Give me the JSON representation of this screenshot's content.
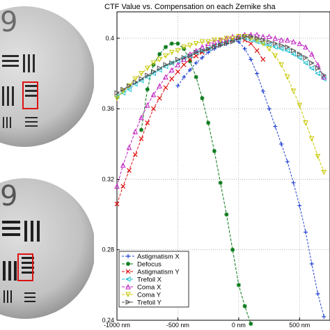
{
  "chart_data": {
    "type": "line",
    "title": "CTF Value vs. Compensation on each Zernike sha",
    "xlabel": "",
    "ylabel": "",
    "xlim": [
      -1000,
      750
    ],
    "ylim": [
      0.24,
      0.415
    ],
    "x_ticks": [
      {
        "value": -1000,
        "label": "-1000 nm"
      },
      {
        "value": -500,
        "label": "-500 nm"
      },
      {
        "value": 0,
        "label": "0 nm"
      },
      {
        "value": 500,
        "label": "500 nm"
      }
    ],
    "y_ticks": [
      {
        "value": 0.24,
        "label": "0.24"
      },
      {
        "value": 0.28,
        "label": "0.28"
      },
      {
        "value": 0.32,
        "label": "0.32"
      },
      {
        "value": 0.36,
        "label": "0.36"
      },
      {
        "value": 0.4,
        "label": "0.4"
      }
    ],
    "grid": true,
    "legend_position": "bottom-left",
    "series": [
      {
        "name": "Astigmatism X",
        "color": "#1f3fd0",
        "marker": "plus",
        "dash": "3,2",
        "x": [
          -500,
          -450,
          -400,
          -350,
          -300,
          -250,
          -200,
          -150,
          -100,
          -50,
          0,
          50,
          100,
          150,
          200,
          250,
          300,
          350,
          400,
          450,
          500,
          550,
          600,
          650,
          700
        ],
        "y": [
          0.373,
          0.378,
          0.382,
          0.386,
          0.389,
          0.392,
          0.394,
          0.396,
          0.397,
          0.399,
          0.398,
          0.394,
          0.388,
          0.38,
          0.37,
          0.36,
          0.35,
          0.34,
          0.33,
          0.318,
          0.305,
          0.29,
          0.272,
          0.255,
          0.242
        ]
      },
      {
        "name": "Defocus",
        "color": "#0a7a1a",
        "marker": "star",
        "dash": "4,2",
        "x": [
          -800,
          -750,
          -700,
          -650,
          -600,
          -550,
          -500,
          -450,
          -400,
          -350,
          -300,
          -250,
          -200,
          -150,
          -100,
          -50,
          0,
          50,
          100
        ],
        "y": [
          0.348,
          0.371,
          0.385,
          0.391,
          0.395,
          0.397,
          0.397,
          0.394,
          0.387,
          0.378,
          0.366,
          0.352,
          0.336,
          0.318,
          0.3,
          0.28,
          0.26,
          0.248,
          0.238
        ]
      },
      {
        "name": "Astigmatism Y",
        "color": "#e01010",
        "marker": "x",
        "dash": "4,2",
        "x": [
          -1000,
          -950,
          -900,
          -850,
          -800,
          -750,
          -700,
          -650,
          -600,
          -550,
          -500,
          -450,
          -400,
          -350,
          -300,
          -250,
          -200,
          -150,
          -100,
          -50,
          0,
          50,
          100,
          150,
          200
        ],
        "y": [
          0.306,
          0.316,
          0.325,
          0.334,
          0.343,
          0.352,
          0.36,
          0.366,
          0.372,
          0.377,
          0.381,
          0.385,
          0.388,
          0.39,
          0.392,
          0.394,
          0.396,
          0.397,
          0.398,
          0.399,
          0.4,
          0.399,
          0.397,
          0.393,
          0.388
        ]
      },
      {
        "name": "Trefoil X",
        "color": "#20c0d0",
        "marker": "triangle-left",
        "dash": "4,2",
        "x": [
          -1000,
          -950,
          -900,
          -850,
          -800,
          -750,
          -700,
          -650,
          -600,
          -550,
          -500,
          -450,
          -400,
          -350,
          -300,
          -250,
          -200,
          -150,
          -100,
          -50,
          0,
          50,
          100,
          150,
          200,
          250,
          300,
          350,
          400,
          450,
          500,
          550,
          600,
          650,
          700
        ],
        "y": [
          0.367,
          0.369,
          0.371,
          0.374,
          0.376,
          0.378,
          0.38,
          0.382,
          0.384,
          0.386,
          0.387,
          0.389,
          0.39,
          0.392,
          0.393,
          0.394,
          0.396,
          0.397,
          0.398,
          0.399,
          0.4,
          0.4,
          0.399,
          0.398,
          0.397,
          0.396,
          0.395,
          0.394,
          0.393,
          0.391,
          0.389,
          0.386,
          0.383,
          0.38,
          0.377
        ]
      },
      {
        "name": "Coma X",
        "color": "#c020c0",
        "marker": "triangle-up",
        "dash": "4,2",
        "x": [
          -1000,
          -950,
          -900,
          -850,
          -800,
          -750,
          -700,
          -650,
          -600,
          -550,
          -500,
          -450,
          -400,
          -350,
          -300,
          -250,
          -200,
          -150,
          -100,
          -50,
          0,
          50,
          100,
          150,
          200,
          250,
          300,
          350,
          400,
          450,
          500,
          550,
          600,
          650,
          700
        ],
        "y": [
          0.316,
          0.328,
          0.338,
          0.347,
          0.355,
          0.362,
          0.368,
          0.373,
          0.378,
          0.382,
          0.385,
          0.388,
          0.391,
          0.393,
          0.395,
          0.397,
          0.398,
          0.399,
          0.4,
          0.401,
          0.401,
          0.402,
          0.402,
          0.402,
          0.401,
          0.401,
          0.4,
          0.399,
          0.399,
          0.398,
          0.397,
          0.395,
          0.391,
          0.385,
          0.378
        ]
      },
      {
        "name": "Coma Y",
        "color": "#c8c800",
        "marker": "triangle-down",
        "dash": "4,2",
        "x": [
          -1000,
          -950,
          -900,
          -850,
          -800,
          -750,
          -700,
          -650,
          -600,
          -550,
          -500,
          -450,
          -400,
          -350,
          -300,
          -250,
          -200,
          -150,
          -100,
          -50,
          0,
          50,
          100,
          150,
          200,
          250,
          300,
          350,
          400,
          450,
          500,
          550,
          600,
          650,
          700
        ],
        "y": [
          0.366,
          0.37,
          0.373,
          0.377,
          0.38,
          0.383,
          0.386,
          0.388,
          0.39,
          0.392,
          0.393,
          0.395,
          0.396,
          0.397,
          0.398,
          0.398,
          0.399,
          0.399,
          0.4,
          0.4,
          0.401,
          0.401,
          0.4,
          0.399,
          0.397,
          0.394,
          0.39,
          0.385,
          0.378,
          0.37,
          0.362,
          0.352,
          0.343,
          0.333,
          0.324
        ]
      },
      {
        "name": "Trefoil Y",
        "color": "#505050",
        "marker": "triangle-right",
        "dash": "4,2",
        "x": [
          -1000,
          -950,
          -900,
          -850,
          -800,
          -750,
          -700,
          -650,
          -600,
          -550,
          -500,
          -450,
          -400,
          -350,
          -300,
          -250,
          -200,
          -150,
          -100,
          -50,
          0,
          50,
          100,
          150,
          200,
          250,
          300,
          350,
          400,
          450,
          500,
          550,
          600,
          650,
          700
        ],
        "y": [
          0.369,
          0.371,
          0.373,
          0.375,
          0.377,
          0.379,
          0.381,
          0.383,
          0.385,
          0.386,
          0.388,
          0.389,
          0.39,
          0.392,
          0.393,
          0.394,
          0.395,
          0.396,
          0.397,
          0.398,
          0.4,
          0.401,
          0.401,
          0.4,
          0.399,
          0.398,
          0.397,
          0.396,
          0.395,
          0.393,
          0.391,
          0.389,
          0.386,
          0.383,
          0.379
        ]
      }
    ]
  },
  "lens_images": {
    "top": {
      "label": "9"
    },
    "bottom": {
      "label": "9"
    }
  },
  "colors": {
    "lens_gray": "#c6c6c6",
    "roi_red": "#dd1111"
  }
}
